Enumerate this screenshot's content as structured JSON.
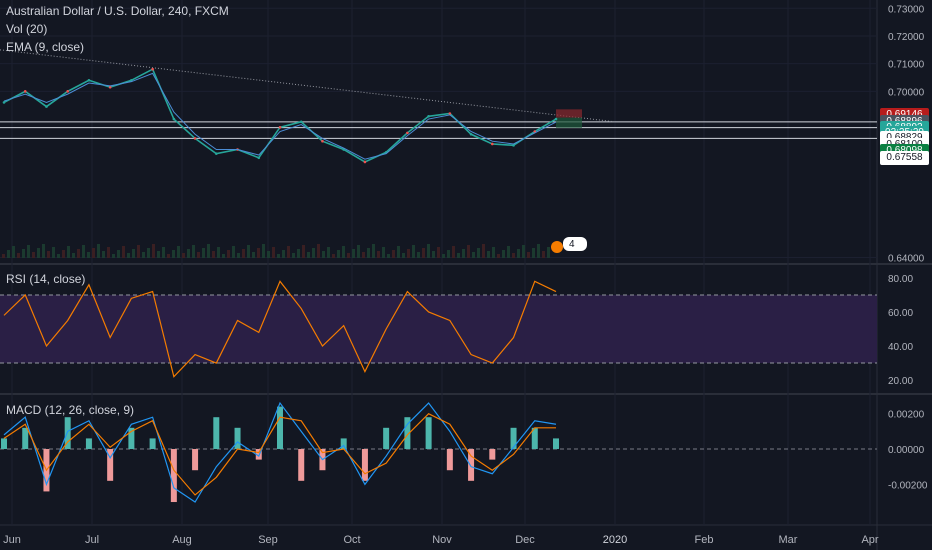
{
  "legend": {
    "title": "Australian Dollar / U.S. Dollar, 240, FXCM",
    "vol": "Vol (20)",
    "ema": "EMA (9, close)",
    "rsi": "RSI (14, close)",
    "macd": "MACD (12, 26, close, 9)"
  },
  "price_tags": [
    {
      "id": "tag-ask",
      "text": "0.69146",
      "bg": "#b71c1c",
      "fg": "#ffffff",
      "price": 0.69146
    },
    {
      "id": "tag-last",
      "text": "0.68896",
      "bg": "#4c525e",
      "fg": "#ffffff",
      "price": 0.68896
    },
    {
      "id": "tag-ema",
      "text": "0.68892",
      "bg": "#26a69a",
      "fg": "#ffffff",
      "price": 0.68692
    },
    {
      "id": "tag-countdown",
      "text": "02:25:29",
      "bg": "#26a69a",
      "fg": "#ffffff",
      "price": 0.685
    },
    {
      "id": "tag-lvl1",
      "text": "0.68829",
      "bg": "#ffffff",
      "fg": "#131722",
      "price": 0.683
    },
    {
      "id": "tag-lvl2",
      "text": "0.68100",
      "bg": "#ffffff",
      "fg": "#131722",
      "price": 0.68075
    },
    {
      "id": "tag-bid",
      "text": "0.68098",
      "bg": "#0b8043",
      "fg": "#ffffff",
      "price": 0.6785
    },
    {
      "id": "tag-lvl3",
      "text": "0.67558",
      "bg": "#ffffff",
      "fg": "#131722",
      "price": 0.676
    }
  ],
  "badge": {
    "text": "4"
  },
  "chart_data": [
    {
      "type": "line",
      "name": "price",
      "title": "Australian Dollar / U.S. Dollar, 240, FXCM",
      "x_labels": [
        "Jun",
        "Jul",
        "Aug",
        "Sep",
        "Oct",
        "Nov",
        "Dec",
        "2020",
        "Feb",
        "Mar",
        "Apr"
      ],
      "ylim": [
        0.638,
        0.733
      ],
      "y_ticks": [
        "0.73000",
        "0.72000",
        "0.71000",
        "0.70000",
        "0.64000"
      ],
      "x": [
        "Jun",
        "Jun 8",
        "Jun 15",
        "Jun 22",
        "Jul",
        "Jul 8",
        "Jul 15",
        "Jul 22",
        "Aug",
        "Aug 8",
        "Aug 15",
        "Aug 22",
        "Sep",
        "Sep 8",
        "Sep 15",
        "Sep 22",
        "Oct",
        "Oct 8",
        "Oct 15",
        "Oct 22",
        "Nov",
        "Nov 8",
        "Nov 15",
        "Nov 22",
        "Dec",
        "Dec 8",
        "Dec 13"
      ],
      "values": [
        0.696,
        0.7,
        0.6945,
        0.7,
        0.704,
        0.7015,
        0.704,
        0.708,
        0.69,
        0.683,
        0.6775,
        0.679,
        0.676,
        0.687,
        0.689,
        0.682,
        0.679,
        0.6745,
        0.678,
        0.685,
        0.691,
        0.692,
        0.6845,
        0.681,
        0.6805,
        0.6855,
        0.69
      ],
      "ema_values": [
        0.6965,
        0.699,
        0.696,
        0.699,
        0.703,
        0.702,
        0.7035,
        0.7065,
        0.6925,
        0.6845,
        0.679,
        0.679,
        0.677,
        0.6855,
        0.688,
        0.683,
        0.6795,
        0.6755,
        0.6775,
        0.684,
        0.69,
        0.6915,
        0.6855,
        0.682,
        0.681,
        0.685,
        0.6889
      ],
      "horizontal_levels": [
        0.69146,
        0.68896,
        0.68892,
        0.68829,
        0.681,
        0.68098,
        0.67558
      ],
      "trendline": {
        "start_price": 0.715,
        "end_price": 0.689
      }
    },
    {
      "type": "line",
      "name": "RSI",
      "title": "RSI (14, close)",
      "ylim": [
        13,
        87
      ],
      "y_ticks": [
        "80.00",
        "60.00",
        "40.00",
        "20.00"
      ],
      "bands": [
        30,
        70
      ],
      "x": [
        "Jun",
        "Jun 8",
        "Jun 15",
        "Jun 22",
        "Jul",
        "Jul 8",
        "Jul 15",
        "Jul 22",
        "Aug",
        "Aug 8",
        "Aug 15",
        "Aug 22",
        "Sep",
        "Sep 8",
        "Sep 15",
        "Sep 22",
        "Oct",
        "Oct 8",
        "Oct 15",
        "Oct 22",
        "Nov",
        "Nov 8",
        "Nov 15",
        "Nov 22",
        "Dec",
        "Dec 8",
        "Dec 13"
      ],
      "values": [
        58,
        70,
        40,
        55,
        76,
        45,
        68,
        72,
        22,
        35,
        30,
        55,
        48,
        78,
        62,
        40,
        52,
        25,
        50,
        72,
        60,
        55,
        35,
        30,
        45,
        78,
        72
      ]
    },
    {
      "type": "line",
      "name": "MACD",
      "title": "MACD (12, 26, close, 9)",
      "ylim": [
        -0.0043,
        0.003
      ],
      "y_ticks": [
        "0.00200",
        "0.00000",
        "-0.00200"
      ],
      "x": [
        "Jun",
        "Jun 8",
        "Jun 15",
        "Jun 22",
        "Jul",
        "Jul 8",
        "Jul 15",
        "Jul 22",
        "Aug",
        "Aug 8",
        "Aug 15",
        "Aug 22",
        "Sep",
        "Sep 8",
        "Sep 15",
        "Sep 22",
        "Oct",
        "Oct 8",
        "Oct 15",
        "Oct 22",
        "Nov",
        "Nov 8",
        "Nov 15",
        "Nov 22",
        "Dec",
        "Dec 8",
        "Dec 13"
      ],
      "macd": [
        0.0008,
        0.0018,
        -0.002,
        0.001,
        0.0016,
        -0.0005,
        0.0014,
        0.0018,
        -0.0022,
        -0.003,
        -0.001,
        0.0004,
        -0.0004,
        0.0026,
        0.001,
        -0.0006,
        0.0002,
        -0.002,
        -0.0004,
        0.0014,
        0.0026,
        0.001,
        -0.001,
        -0.0014,
        0.0001,
        0.0016,
        0.0014
      ],
      "signal": [
        0.0006,
        0.0014,
        -0.0012,
        0.0004,
        0.0014,
        0.0001,
        0.001,
        0.0016,
        -0.0012,
        -0.0026,
        -0.0016,
        0.0,
        -0.0002,
        0.0018,
        0.0016,
        -0.0002,
        0.0,
        -0.0014,
        -0.0008,
        0.0008,
        0.002,
        0.0014,
        -0.0004,
        -0.0012,
        -0.0003,
        0.0012,
        0.0012
      ]
    }
  ]
}
